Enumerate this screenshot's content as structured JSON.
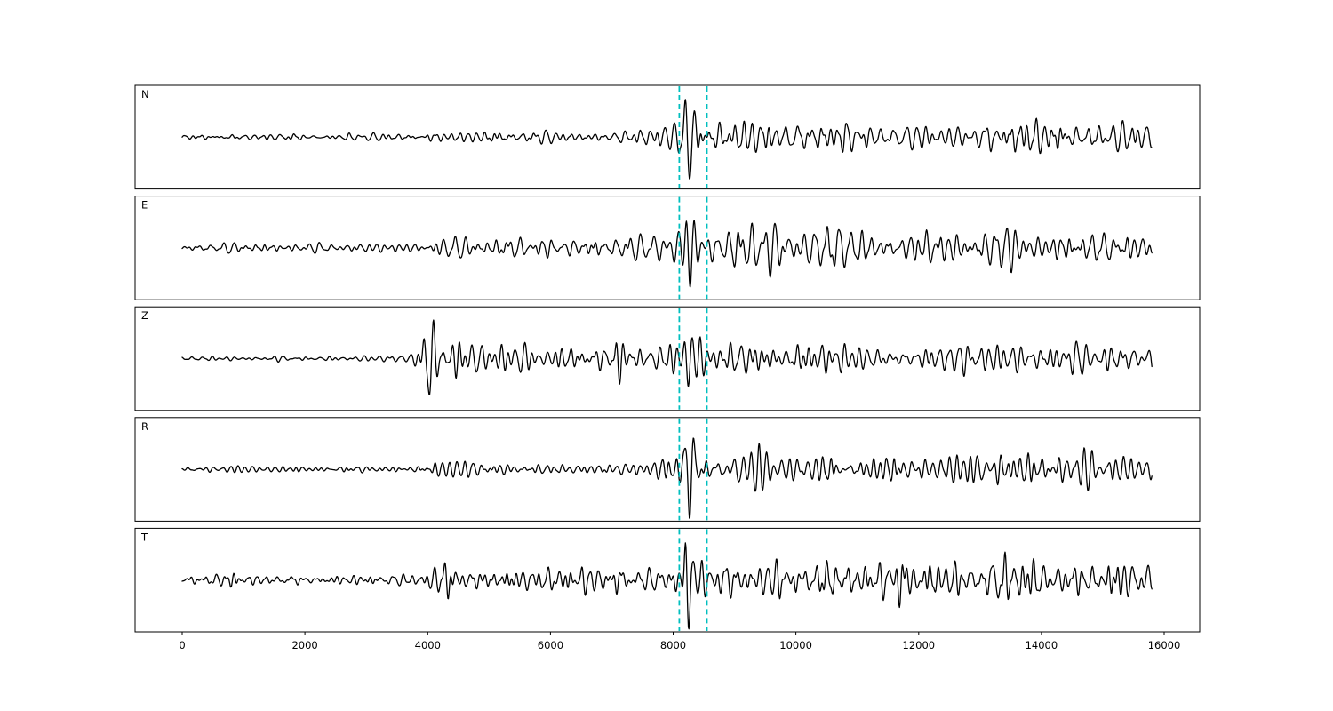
{
  "figure": {
    "background": "#ffffff"
  },
  "chart_data": {
    "type": "line",
    "subtype": "seismogram-multipanel",
    "title": "",
    "xlabel": "",
    "ylabel": "",
    "grid": false,
    "legend": false,
    "x_axis": {
      "ticks": [
        0,
        2000,
        4000,
        6000,
        8000,
        10000,
        12000,
        14000,
        16000
      ],
      "xlim": [
        -770,
        16580
      ],
      "trace_x_start": 0,
      "trace_x_end": 15800
    },
    "trace_color": "#000000",
    "frame_color": "#000000",
    "marker_lines": {
      "color": "#00bfbf",
      "style": "dashed",
      "positions": [
        8100,
        8550
      ]
    },
    "panels": [
      {
        "label": "N",
        "seed": 101,
        "envelope": [
          [
            0,
            0.05
          ],
          [
            1000,
            0.07
          ],
          [
            2000,
            0.07
          ],
          [
            3000,
            0.08
          ],
          [
            3800,
            0.09
          ],
          [
            4000,
            0.13
          ],
          [
            4600,
            0.15
          ],
          [
            5200,
            0.13
          ],
          [
            6000,
            0.12
          ],
          [
            6800,
            0.13
          ],
          [
            7200,
            0.16
          ],
          [
            7600,
            0.22
          ],
          [
            7900,
            0.3
          ],
          [
            8050,
            0.38
          ],
          [
            8150,
            0.45
          ],
          [
            8450,
            0.4
          ],
          [
            8800,
            0.38
          ],
          [
            9200,
            0.45
          ],
          [
            9600,
            0.4
          ],
          [
            10200,
            0.32
          ],
          [
            11000,
            0.3
          ],
          [
            11600,
            0.28
          ],
          [
            12200,
            0.3
          ],
          [
            12800,
            0.28
          ],
          [
            13100,
            0.4
          ],
          [
            13500,
            0.48
          ],
          [
            13900,
            0.38
          ],
          [
            14400,
            0.4
          ],
          [
            14800,
            0.32
          ],
          [
            15300,
            0.34
          ],
          [
            15800,
            0.28
          ]
        ],
        "spikes": [
          {
            "x": 8270,
            "amp": 0.95,
            "width": 110,
            "period": 150
          }
        ]
      },
      {
        "label": "E",
        "seed": 202,
        "envelope": [
          [
            0,
            0.1
          ],
          [
            800,
            0.12
          ],
          [
            1600,
            0.1
          ],
          [
            2400,
            0.11
          ],
          [
            3200,
            0.1
          ],
          [
            3900,
            0.11
          ],
          [
            4050,
            0.35
          ],
          [
            4200,
            0.42
          ],
          [
            4500,
            0.3
          ],
          [
            5000,
            0.22
          ],
          [
            5600,
            0.26
          ],
          [
            6200,
            0.22
          ],
          [
            6800,
            0.24
          ],
          [
            7100,
            0.3
          ],
          [
            7500,
            0.28
          ],
          [
            7900,
            0.3
          ],
          [
            8100,
            0.36
          ],
          [
            8400,
            0.38
          ],
          [
            8800,
            0.34
          ],
          [
            9200,
            0.45
          ],
          [
            9600,
            0.4
          ],
          [
            10000,
            0.36
          ],
          [
            10500,
            0.42
          ],
          [
            11000,
            0.38
          ],
          [
            11500,
            0.46
          ],
          [
            12000,
            0.42
          ],
          [
            12400,
            0.46
          ],
          [
            12900,
            0.36
          ],
          [
            13200,
            0.55
          ],
          [
            13500,
            0.62
          ],
          [
            13800,
            0.4
          ],
          [
            14300,
            0.3
          ],
          [
            14800,
            0.28
          ],
          [
            15200,
            0.4
          ],
          [
            15600,
            0.36
          ],
          [
            15800,
            0.25
          ]
        ],
        "spikes": [
          {
            "x": 8280,
            "amp": 0.9,
            "width": 100,
            "period": 150
          }
        ]
      },
      {
        "label": "Z",
        "seed": 303,
        "envelope": [
          [
            0,
            0.05
          ],
          [
            1000,
            0.06
          ],
          [
            2000,
            0.07
          ],
          [
            3000,
            0.07
          ],
          [
            3700,
            0.07
          ],
          [
            3900,
            0.3
          ],
          [
            3980,
            0.75
          ],
          [
            4100,
            0.65
          ],
          [
            4300,
            0.6
          ],
          [
            4600,
            0.5
          ],
          [
            5000,
            0.4
          ],
          [
            5400,
            0.42
          ],
          [
            5800,
            0.35
          ],
          [
            6200,
            0.32
          ],
          [
            6600,
            0.3
          ],
          [
            6900,
            0.35
          ],
          [
            7050,
            0.6
          ],
          [
            7200,
            0.45
          ],
          [
            7350,
            0.55
          ],
          [
            7500,
            0.35
          ],
          [
            7800,
            0.35
          ],
          [
            8100,
            0.4
          ],
          [
            8300,
            0.45
          ],
          [
            8600,
            0.35
          ],
          [
            9000,
            0.38
          ],
          [
            9400,
            0.35
          ],
          [
            9800,
            0.3
          ],
          [
            10200,
            0.4
          ],
          [
            10600,
            0.35
          ],
          [
            11200,
            0.4
          ],
          [
            11700,
            0.35
          ],
          [
            12200,
            0.38
          ],
          [
            12800,
            0.32
          ],
          [
            13300,
            0.4
          ],
          [
            13800,
            0.32
          ],
          [
            14300,
            0.36
          ],
          [
            14800,
            0.38
          ],
          [
            15300,
            0.4
          ],
          [
            15800,
            0.3
          ]
        ],
        "spikes": [
          {
            "x": 4020,
            "amp": 0.85,
            "width": 90,
            "period": 140
          },
          {
            "x": 7120,
            "amp": 0.7,
            "width": 80,
            "period": 130
          },
          {
            "x": 8250,
            "amp": 0.5,
            "width": 90,
            "period": 140
          }
        ]
      },
      {
        "label": "R",
        "seed": 404,
        "envelope": [
          [
            0,
            0.05
          ],
          [
            1000,
            0.07
          ],
          [
            2000,
            0.07
          ],
          [
            3000,
            0.08
          ],
          [
            3800,
            0.09
          ],
          [
            4000,
            0.14
          ],
          [
            4600,
            0.16
          ],
          [
            5200,
            0.14
          ],
          [
            6000,
            0.13
          ],
          [
            6800,
            0.14
          ],
          [
            7200,
            0.16
          ],
          [
            7600,
            0.2
          ],
          [
            7900,
            0.28
          ],
          [
            8100,
            0.4
          ],
          [
            8450,
            0.38
          ],
          [
            8800,
            0.35
          ],
          [
            9200,
            0.42
          ],
          [
            9700,
            0.36
          ],
          [
            10200,
            0.3
          ],
          [
            11000,
            0.3
          ],
          [
            11600,
            0.32
          ],
          [
            12200,
            0.3
          ],
          [
            12800,
            0.3
          ],
          [
            13100,
            0.4
          ],
          [
            13500,
            0.45
          ],
          [
            13900,
            0.36
          ],
          [
            14400,
            0.38
          ],
          [
            14900,
            0.34
          ],
          [
            15300,
            0.36
          ],
          [
            15800,
            0.28
          ]
        ],
        "spikes": [
          {
            "x": 8270,
            "amp": 0.95,
            "width": 110,
            "period": 150
          }
        ]
      },
      {
        "label": "T",
        "seed": 505,
        "envelope": [
          [
            0,
            0.1
          ],
          [
            800,
            0.12
          ],
          [
            1600,
            0.11
          ],
          [
            2400,
            0.12
          ],
          [
            3200,
            0.1
          ],
          [
            3900,
            0.11
          ],
          [
            4100,
            0.4
          ],
          [
            4250,
            0.45
          ],
          [
            4600,
            0.3
          ],
          [
            5100,
            0.25
          ],
          [
            5700,
            0.28
          ],
          [
            6300,
            0.24
          ],
          [
            6900,
            0.3
          ],
          [
            7300,
            0.34
          ],
          [
            7700,
            0.32
          ],
          [
            8000,
            0.38
          ],
          [
            8200,
            0.5
          ],
          [
            8500,
            0.4
          ],
          [
            8900,
            0.38
          ],
          [
            9300,
            0.48
          ],
          [
            9700,
            0.4
          ],
          [
            10200,
            0.36
          ],
          [
            10700,
            0.42
          ],
          [
            11200,
            0.4
          ],
          [
            11700,
            0.44
          ],
          [
            12100,
            0.5
          ],
          [
            12500,
            0.42
          ],
          [
            12900,
            0.4
          ],
          [
            13300,
            0.6
          ],
          [
            13600,
            0.55
          ],
          [
            13900,
            0.4
          ],
          [
            14400,
            0.34
          ],
          [
            14900,
            0.36
          ],
          [
            15300,
            0.45
          ],
          [
            15700,
            0.38
          ],
          [
            15800,
            0.3
          ]
        ],
        "spikes": [
          {
            "x": 8260,
            "amp": 0.8,
            "width": 100,
            "period": 150
          }
        ]
      }
    ]
  }
}
